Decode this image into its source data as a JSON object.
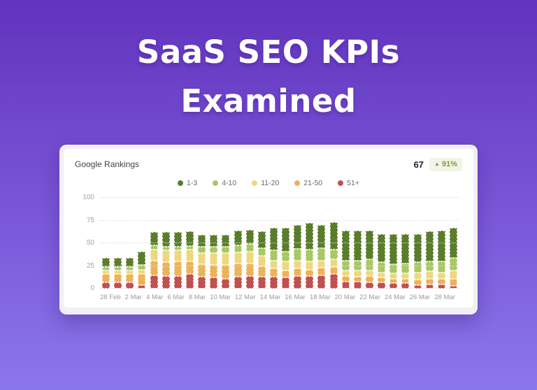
{
  "title": {
    "line1": "SaaS SEO KPIs",
    "line2": "Examined"
  },
  "theme": {
    "background_top": "#6233bd",
    "background_mid": "#7a57d8",
    "background_bottom": "#8b77ec",
    "badge_bg": "#f1f4e6",
    "badge_fg": "#7d9d3f"
  },
  "card": {
    "title": "Google Rankings",
    "value": "67",
    "change_icon": "▲",
    "change": "91%"
  },
  "chart_data": {
    "type": "bar",
    "stacked": true,
    "title": "Google Rankings",
    "xlabel": "",
    "ylabel": "",
    "ylim": [
      0,
      100
    ],
    "yticks": [
      0,
      25,
      50,
      75,
      100
    ],
    "grid": "horizontal-dotted",
    "legend_position": "top-center",
    "x_label_every": 2,
    "x": [
      "28 Feb",
      "1 Mar",
      "2 Mar",
      "3 Mar",
      "4 Mar",
      "5 Mar",
      "6 Mar",
      "7 Mar",
      "8 Mar",
      "9 Mar",
      "10 Mar",
      "11 Mar",
      "12 Mar",
      "13 Mar",
      "14 Mar",
      "15 Mar",
      "16 Mar",
      "17 Mar",
      "18 Mar",
      "19 Mar",
      "20 Mar",
      "21 Mar",
      "22 Mar",
      "23 Mar",
      "24 Mar",
      "25 Mar",
      "26 Mar",
      "27 Mar",
      "28 Mar",
      "29 Mar"
    ],
    "series": [
      {
        "name": "1-3",
        "color": "#5a7d2b",
        "values": [
          10,
          10,
          10,
          15,
          14,
          16,
          16,
          16,
          13,
          13,
          13,
          16,
          16,
          18,
          25,
          26,
          26,
          29,
          25,
          30,
          33,
          33,
          32,
          31,
          33,
          32,
          31,
          33,
          34,
          33
        ]
      },
      {
        "name": "4-10",
        "color": "#a9c862",
        "values": [
          4,
          4,
          4,
          5,
          5,
          4,
          4,
          4,
          7,
          7,
          7,
          8,
          8,
          9,
          11,
          11,
          13,
          13,
          14,
          11,
          11,
          11,
          12,
          11,
          10,
          11,
          11,
          11,
          12,
          14
        ]
      },
      {
        "name": "11-20",
        "color": "#eed87e",
        "values": [
          4,
          4,
          4,
          5,
          12,
          13,
          12,
          13,
          12,
          13,
          13,
          12,
          13,
          11,
          9,
          10,
          9,
          9,
          8,
          8,
          6,
          7,
          6,
          6,
          6,
          6,
          8,
          8,
          7,
          9
        ]
      },
      {
        "name": "21-50",
        "color": "#eeb356",
        "values": [
          9,
          9,
          9,
          12,
          16,
          15,
          16,
          14,
          14,
          14,
          15,
          15,
          14,
          12,
          9,
          8,
          8,
          7,
          8,
          8,
          6,
          5,
          7,
          5,
          5,
          5,
          6,
          6,
          6,
          8
        ]
      },
      {
        "name": "51+",
        "color": "#c15050",
        "values": [
          7,
          7,
          7,
          4,
          15,
          14,
          14,
          16,
          13,
          12,
          11,
          13,
          14,
          13,
          13,
          12,
          14,
          14,
          15,
          16,
          8,
          8,
          7,
          7,
          6,
          6,
          4,
          5,
          5,
          3
        ]
      }
    ],
    "totals": [
      34,
      34,
      34,
      41,
      62,
      62,
      62,
      63,
      59,
      59,
      59,
      64,
      65,
      63,
      67,
      67,
      70,
      72,
      70,
      73,
      64,
      64,
      64,
      60,
      60,
      60,
      60,
      63,
      64,
      67
    ]
  }
}
